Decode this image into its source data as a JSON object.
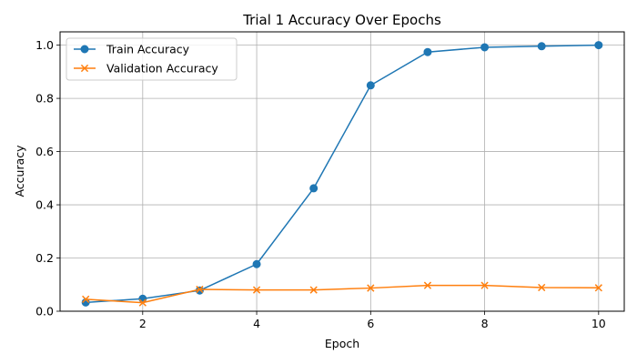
{
  "chart_data": {
    "type": "line",
    "title": "Trial 1 Accuracy Over Epochs",
    "xlabel": "Epoch",
    "ylabel": "Accuracy",
    "xlim": [
      0.55,
      10.45
    ],
    "ylim": [
      0,
      1.05
    ],
    "xticks": [
      2,
      4,
      6,
      8,
      10
    ],
    "yticks": [
      0.0,
      0.2,
      0.4,
      0.6,
      0.8,
      1.0
    ],
    "grid": true,
    "legend_position": "upper-left",
    "x": [
      1,
      2,
      3,
      4,
      5,
      6,
      7,
      8,
      9,
      10
    ],
    "series": [
      {
        "name": "Train Accuracy",
        "color": "#1f77b4",
        "marker": "circle",
        "values": [
          0.033,
          0.047,
          0.078,
          0.177,
          0.462,
          0.849,
          0.974,
          0.992,
          0.996,
          1.0
        ]
      },
      {
        "name": "Validation Accuracy",
        "color": "#ff7f0e",
        "marker": "x",
        "values": [
          0.045,
          0.032,
          0.082,
          0.08,
          0.08,
          0.087,
          0.097,
          0.097,
          0.089,
          0.088
        ]
      }
    ]
  }
}
